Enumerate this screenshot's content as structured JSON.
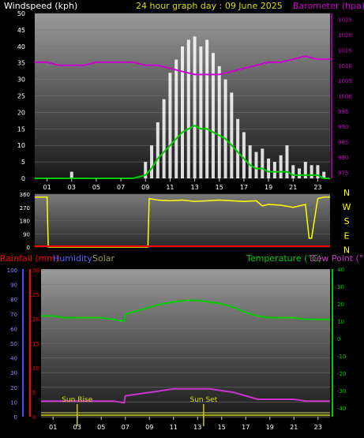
{
  "header": {
    "left_title": "Windspeed (kph)",
    "center_title": "24 hour graph day : 09 June 2025",
    "right_title": "Barometer (hpa)"
  },
  "colors": {
    "background": "#000000",
    "wind_gust": "#ffffff",
    "wind_avg": "#00cc00",
    "wind_dir": "#ffff00",
    "barometer": "#cc00cc",
    "rain": "#ff0000",
    "humidity": "#4a4aff",
    "solar": "#999955",
    "temperature": "#00cc00",
    "dew_point": "#cc33cc",
    "sun_marker": "#cccc00"
  },
  "chart_data": [
    {
      "type": "line",
      "name": "wind-baro",
      "x_tick_labels": [
        "01",
        "03",
        "05",
        "07",
        "09",
        "11",
        "13",
        "15",
        "17",
        "19",
        "21",
        "23"
      ],
      "xlim": [
        0,
        24
      ],
      "y_left": {
        "label": "Windspeed (kph)",
        "ticks": [
          0,
          5,
          10,
          15,
          20,
          25,
          30,
          35,
          40,
          45,
          50
        ],
        "ylim": [
          0,
          50
        ]
      },
      "y_right": {
        "label": "Barometer (hpa)",
        "ticks": [
          975,
          980,
          985,
          990,
          995,
          1000,
          1005,
          1010,
          1015,
          1020,
          1025
        ],
        "ylim": [
          973,
          1027
        ]
      },
      "series": [
        {
          "name": "Barometer (hpa)",
          "axis": "right",
          "x": [
            0,
            1,
            2,
            3,
            4,
            5,
            6,
            7,
            8,
            9,
            10,
            11,
            12,
            13,
            14,
            15,
            16,
            17,
            18,
            19,
            20,
            21,
            22,
            23,
            24
          ],
          "y": [
            1011,
            1011,
            1010,
            1010,
            1010,
            1011,
            1011,
            1011,
            1011,
            1010,
            1010,
            1009,
            1008,
            1007,
            1007,
            1007,
            1008,
            1009,
            1010,
            1011,
            1011,
            1012,
            1013,
            1012,
            1012
          ]
        },
        {
          "name": "Wind gust (kph)",
          "axis": "left",
          "style": "bars",
          "x": [
            0,
            1,
            2,
            3,
            4,
            5,
            6,
            7,
            8,
            9,
            9.5,
            10,
            10.5,
            11,
            11.5,
            12,
            12.5,
            13,
            13.5,
            14,
            14.5,
            15,
            15.5,
            16,
            16.5,
            17,
            17.5,
            18,
            18.5,
            19,
            19.5,
            20,
            20.5,
            21,
            21.5,
            22,
            22.5,
            23,
            23.5,
            24
          ],
          "y": [
            0,
            0,
            0,
            2,
            0,
            0,
            0,
            0,
            0,
            5,
            10,
            17,
            24,
            32,
            36,
            40,
            42,
            43,
            40,
            42,
            38,
            34,
            30,
            26,
            18,
            14,
            10,
            8,
            9,
            6,
            5,
            7,
            10,
            4,
            3,
            5,
            4,
            4,
            2,
            0
          ]
        },
        {
          "name": "Wind average (kph)",
          "axis": "left",
          "x": [
            0,
            1,
            2,
            3,
            4,
            5,
            6,
            7,
            8,
            9,
            9.5,
            10,
            10.5,
            11,
            11.5,
            12,
            12.5,
            13,
            13.5,
            14,
            14.5,
            15,
            15.5,
            16,
            16.5,
            17,
            17.5,
            18,
            18.5,
            19,
            19.5,
            20,
            20.5,
            21,
            21.5,
            22,
            22.5,
            23,
            23.5,
            24
          ],
          "y": [
            0,
            0,
            0,
            0,
            0,
            0,
            0,
            0,
            0,
            1,
            3,
            6,
            8,
            10,
            12,
            14,
            15,
            16,
            15,
            15,
            14,
            13,
            12,
            10,
            8,
            6,
            4,
            3,
            3,
            2,
            2,
            2,
            2,
            1,
            1,
            1,
            1,
            1,
            0,
            0
          ]
        }
      ]
    },
    {
      "type": "line",
      "name": "wind-direction",
      "y_left": {
        "ticks": [
          0,
          90,
          180,
          270,
          360
        ],
        "ylim": [
          0,
          360
        ]
      },
      "y_right_labels": [
        "N",
        "W",
        "S",
        "E",
        "N"
      ],
      "series": [
        {
          "name": "Wind direction (deg)",
          "x": [
            0,
            1,
            1.1,
            2,
            4,
            6,
            8,
            9.2,
            9.3,
            10,
            11,
            12,
            13,
            14,
            15,
            16,
            17,
            18,
            18.5,
            19,
            20,
            21,
            22,
            22.3,
            22.5,
            23,
            23.5,
            24
          ],
          "y": [
            340,
            340,
            0,
            0,
            0,
            0,
            0,
            0,
            330,
            320,
            315,
            320,
            310,
            315,
            320,
            315,
            310,
            315,
            280,
            290,
            285,
            270,
            290,
            60,
            60,
            330,
            340,
            340
          ]
        },
        {
          "name": "Rainfall rate",
          "x": [
            0,
            24
          ],
          "y": [
            0,
            0
          ]
        }
      ]
    },
    {
      "type": "line",
      "name": "temp-hum",
      "header": {
        "rain_label": "Rainfall (mm)",
        "humidity_label": "Humidity",
        "solar_label": "Solar",
        "temp_label": "Temperature (°C)",
        "dew_label": "Dew Point (°C)"
      },
      "x_tick_labels": [
        "01",
        "03",
        "05",
        "07",
        "09",
        "11",
        "13",
        "15",
        "17",
        "19",
        "21",
        "23"
      ],
      "xlim": [
        0,
        24
      ],
      "y_humidity": {
        "ticks": [
          0,
          10,
          20,
          30,
          40,
          50,
          60,
          70,
          80,
          90,
          100
        ],
        "ylim": [
          0,
          100
        ]
      },
      "y_rain": {
        "ticks": [
          0,
          5,
          10,
          15,
          20,
          25,
          30
        ],
        "ylim": [
          0,
          30
        ]
      },
      "y_temp": {
        "ticks": [
          -40,
          -30,
          -20,
          -10,
          0,
          10,
          20,
          30,
          40
        ],
        "ylim": [
          -45,
          40
        ]
      },
      "annotations": [
        {
          "text": "Sun Rise",
          "x": 3.0
        },
        {
          "text": "Sun Set",
          "x": 13.5
        }
      ],
      "series": [
        {
          "name": "Temperature (°C)",
          "x": [
            0,
            1,
            2,
            3,
            4,
            5,
            6,
            6.9,
            7,
            7.5,
            8,
            9,
            10,
            11,
            12,
            13,
            14,
            15,
            16,
            17,
            18,
            19,
            20,
            21,
            22,
            23,
            24
          ],
          "y": [
            13,
            13,
            12,
            12,
            12,
            12,
            11,
            10,
            14,
            15,
            16,
            18,
            20,
            21,
            22,
            22,
            21,
            20,
            18,
            15,
            13,
            12,
            12,
            12,
            11,
            11,
            11
          ]
        },
        {
          "name": "Dew Point (°C)",
          "x": [
            0,
            1,
            2,
            3,
            4,
            5,
            6,
            6.9,
            7,
            8,
            9,
            10,
            11,
            12,
            13,
            14,
            15,
            16,
            17,
            18,
            19,
            20,
            21,
            22,
            23,
            24
          ],
          "y": [
            -36,
            -36,
            -36,
            -36,
            -36,
            -36,
            -36,
            -37,
            -33,
            -32,
            -31,
            -30,
            -29,
            -29,
            -29,
            -29,
            -30,
            -31,
            -33,
            -35,
            -35,
            -35,
            -35,
            -36,
            -36,
            -36
          ]
        },
        {
          "name": "Rainfall (mm)",
          "x": [
            0,
            24
          ],
          "y": [
            0,
            0
          ]
        },
        {
          "name": "Solar",
          "x": [
            0,
            24
          ],
          "y": [
            0,
            0
          ]
        }
      ]
    }
  ]
}
